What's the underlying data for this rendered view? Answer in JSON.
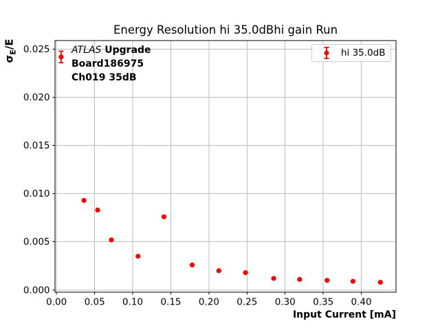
{
  "chart_data": {
    "type": "scatter",
    "title": "Energy Resolution hi 35.0dBhi gain Run",
    "xlabel": "Input Current [mA]",
    "ylabel": "σE/E",
    "xlim": [
      -0.002,
      0.4455
    ],
    "ylim": [
      -0.00023,
      0.0259
    ],
    "grid": true,
    "legend": {
      "label": "hi 35.0dB",
      "position": "upper right"
    },
    "xticks": [
      {
        "v": 0.0,
        "label": "0.00"
      },
      {
        "v": 0.05,
        "label": "0.05"
      },
      {
        "v": 0.1,
        "label": "0.10"
      },
      {
        "v": 0.15,
        "label": "0.15"
      },
      {
        "v": 0.2,
        "label": "0.20"
      },
      {
        "v": 0.25,
        "label": "0.25"
      },
      {
        "v": 0.3,
        "label": "0.30"
      },
      {
        "v": 0.35,
        "label": "0.35"
      },
      {
        "v": 0.4,
        "label": "0.40"
      }
    ],
    "yticks": [
      {
        "v": 0.0,
        "label": "0.000"
      },
      {
        "v": 0.005,
        "label": "0.005"
      },
      {
        "v": 0.01,
        "label": "0.010"
      },
      {
        "v": 0.015,
        "label": "0.015"
      },
      {
        "v": 0.02,
        "label": "0.020"
      },
      {
        "v": 0.025,
        "label": "0.025"
      }
    ],
    "series": [
      {
        "name": "hi 35.0dB",
        "color": "#ff0000",
        "marker": "circle-with-errorbar",
        "points": [
          {
            "x": 0.006,
            "y": 0.0242,
            "yerr": 0.0006
          },
          {
            "x": 0.036,
            "y": 0.0093,
            "yerr": 0
          },
          {
            "x": 0.054,
            "y": 0.0083,
            "yerr": 0
          },
          {
            "x": 0.072,
            "y": 0.0052,
            "yerr": 0
          },
          {
            "x": 0.107,
            "y": 0.0035,
            "yerr": 0
          },
          {
            "x": 0.141,
            "y": 0.0076,
            "yerr": 0
          },
          {
            "x": 0.178,
            "y": 0.0026,
            "yerr": 0
          },
          {
            "x": 0.213,
            "y": 0.002,
            "yerr": 0
          },
          {
            "x": 0.248,
            "y": 0.0018,
            "yerr": 0
          },
          {
            "x": 0.285,
            "y": 0.0012,
            "yerr": 0
          },
          {
            "x": 0.319,
            "y": 0.0011,
            "yerr": 0
          },
          {
            "x": 0.355,
            "y": 0.001,
            "yerr": 0
          },
          {
            "x": 0.389,
            "y": 0.0009,
            "yerr": 0
          },
          {
            "x": 0.425,
            "y": 0.0008,
            "yerr": 0
          }
        ]
      }
    ]
  },
  "labels": {
    "ylabel_sigma": "σ",
    "ylabel_sub": "E",
    "ylabel_rest": "/E"
  },
  "annotation": {
    "line1_italic": "ATLAS",
    "line1_bold": "Upgrade",
    "line2": "Board186975",
    "line3": "Ch019 35dB"
  },
  "colors": {
    "series": "#ff0000",
    "grid": "#bcbcbc",
    "spine": "#000000",
    "tick": "#000000",
    "legend_border": "#cccccc",
    "background": "#ffffff"
  }
}
